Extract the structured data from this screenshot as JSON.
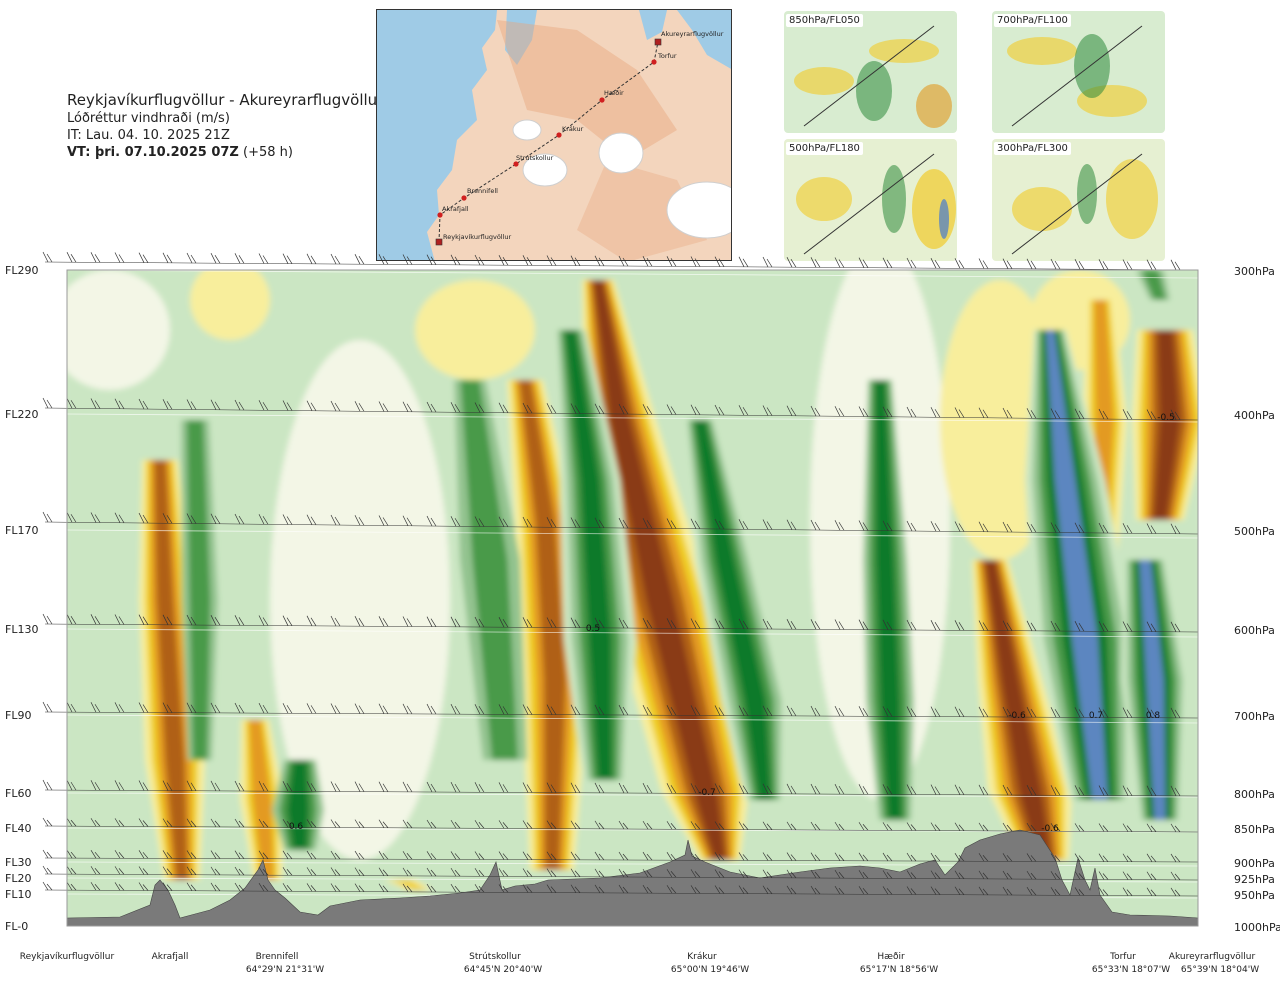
{
  "header": {
    "route": "Reykjavíkurflugvöllur - Akureyrarflugvöllur",
    "variable": "Lóðréttur vindhraði (m/s)",
    "it_label": "IT: Lau. 04. 10. 2025 21Z",
    "vt_label": "VT: þri. 07.10.2025 07Z",
    "vt_offset": "(+58 h)"
  },
  "route_map": {
    "waypoints": [
      {
        "name": "Akureyrarflugvöllur",
        "marker": "square"
      },
      {
        "name": "Torfur",
        "marker": "circle"
      },
      {
        "name": "Hæðir",
        "marker": "circle"
      },
      {
        "name": "Krákur",
        "marker": "circle"
      },
      {
        "name": "Strútskollur",
        "marker": "circle"
      },
      {
        "name": "Brennifell",
        "marker": "circle"
      },
      {
        "name": "Akrafjall",
        "marker": "circle"
      },
      {
        "name": "Reykjavíkurflugvöllur",
        "marker": "square"
      }
    ]
  },
  "level_maps": [
    {
      "label": "850hPa/FL050"
    },
    {
      "label": "700hPa/FL100"
    },
    {
      "label": "500hPa/FL180"
    },
    {
      "label": "300hPa/FL300"
    }
  ],
  "chart_data": {
    "type": "heatmap",
    "title": "Lóðréttur vindhraði (m/s)",
    "left_axis": {
      "ticks": [
        "FL290",
        "FL220",
        "FL170",
        "FL130",
        "FL90",
        "FL60",
        "FL40",
        "FL30",
        "FL20",
        "FL10",
        "FL-0"
      ]
    },
    "right_axis": {
      "ticks": [
        "300hPa",
        "400hPa",
        "500hPa",
        "600hPa",
        "700hPa",
        "800hPa",
        "850hPa",
        "900hPa",
        "925hPa",
        "950hPa",
        "1000hPa"
      ]
    },
    "x_axis": {
      "locations": [
        {
          "name": "Reykjavíkurflugvöllur",
          "coord": ""
        },
        {
          "name": "Akrafjall",
          "coord": ""
        },
        {
          "name": "Brennifell",
          "coord": "64°29'N 21°31'W"
        },
        {
          "name": "Strútskollur",
          "coord": "64°45'N 20°40'W"
        },
        {
          "name": "Krákur",
          "coord": "65°00'N 19°46'W"
        },
        {
          "name": "Hæðir",
          "coord": "65°17'N 18°56'W"
        },
        {
          "name": "Torfur",
          "coord": "65°33'N 18°07'W"
        },
        {
          "name": "Akureyrarflugvöllur",
          "coord": "65°39'N 18°04'W"
        }
      ]
    },
    "annotations": [
      "0.6",
      "-0.5",
      "0.5",
      "-0.7",
      "-0.6",
      "0.7",
      "0.8",
      "-0.6",
      "0.6"
    ],
    "colors": {
      "strong_up_blue": "#5b86c0",
      "up_dark_green": "#0f7a2a",
      "up_green": "#4a9a4a",
      "up_mid_green": "#93c38f",
      "up_light_green": "#cbe6c3",
      "neutral": "#f3f6e6",
      "down_light_yellow": "#f8ee9c",
      "down_yellow": "#f0cf27",
      "down_orange": "#e39a20",
      "down_brown": "#b06018",
      "strong_down_brown": "#8a3a12",
      "terrain": "#7a7a7a"
    }
  }
}
